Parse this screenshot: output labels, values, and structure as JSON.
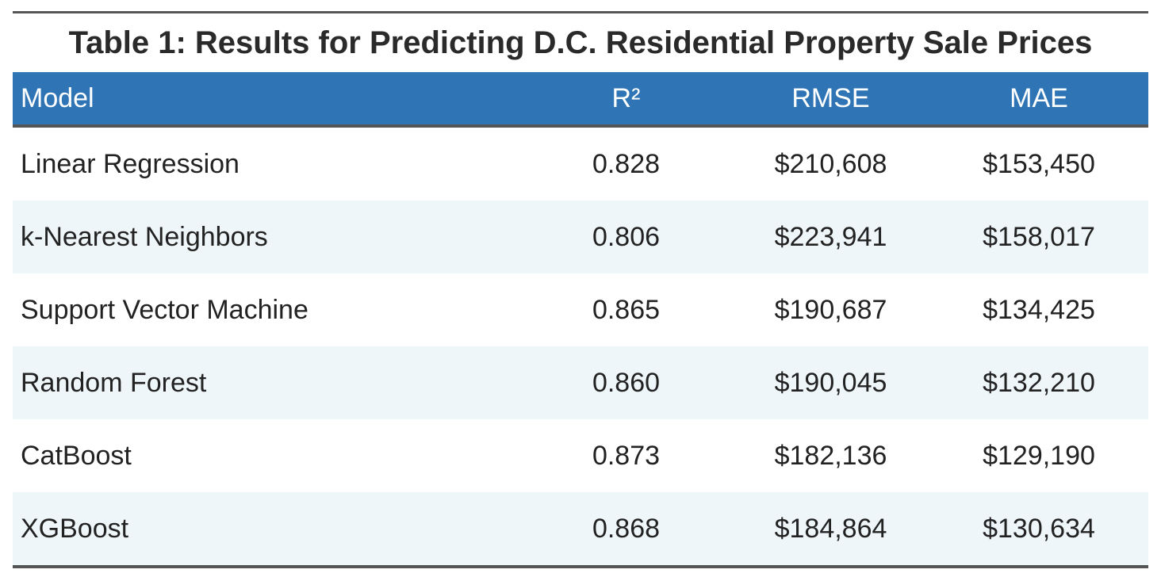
{
  "title": "Table 1: Results for Predicting D.C. Residential Property Sale Prices",
  "columns": [
    "Model",
    "R²",
    "RMSE",
    "MAE"
  ],
  "rows": [
    {
      "model": "Linear Regression",
      "r2": "0.828",
      "rmse": "$210,608",
      "mae": "$153,450"
    },
    {
      "model": "k-Nearest Neighbors",
      "r2": "0.806",
      "rmse": "$223,941",
      "mae": "$158,017"
    },
    {
      "model": "Support Vector Machine",
      "r2": "0.865",
      "rmse": "$190,687",
      "mae": "$134,425"
    },
    {
      "model": "Random Forest",
      "r2": "0.860",
      "rmse": "$190,045",
      "mae": "$132,210"
    },
    {
      "model": "CatBoost",
      "r2": "0.873",
      "rmse": "$182,136",
      "mae": "$129,190"
    },
    {
      "model": "XGBoost",
      "r2": "0.868",
      "rmse": "$184,864",
      "mae": "$130,634"
    }
  ],
  "colors": {
    "header_bg": "#2f75b5",
    "stripe_bg": "#eef6fa",
    "rule": "#555555"
  }
}
